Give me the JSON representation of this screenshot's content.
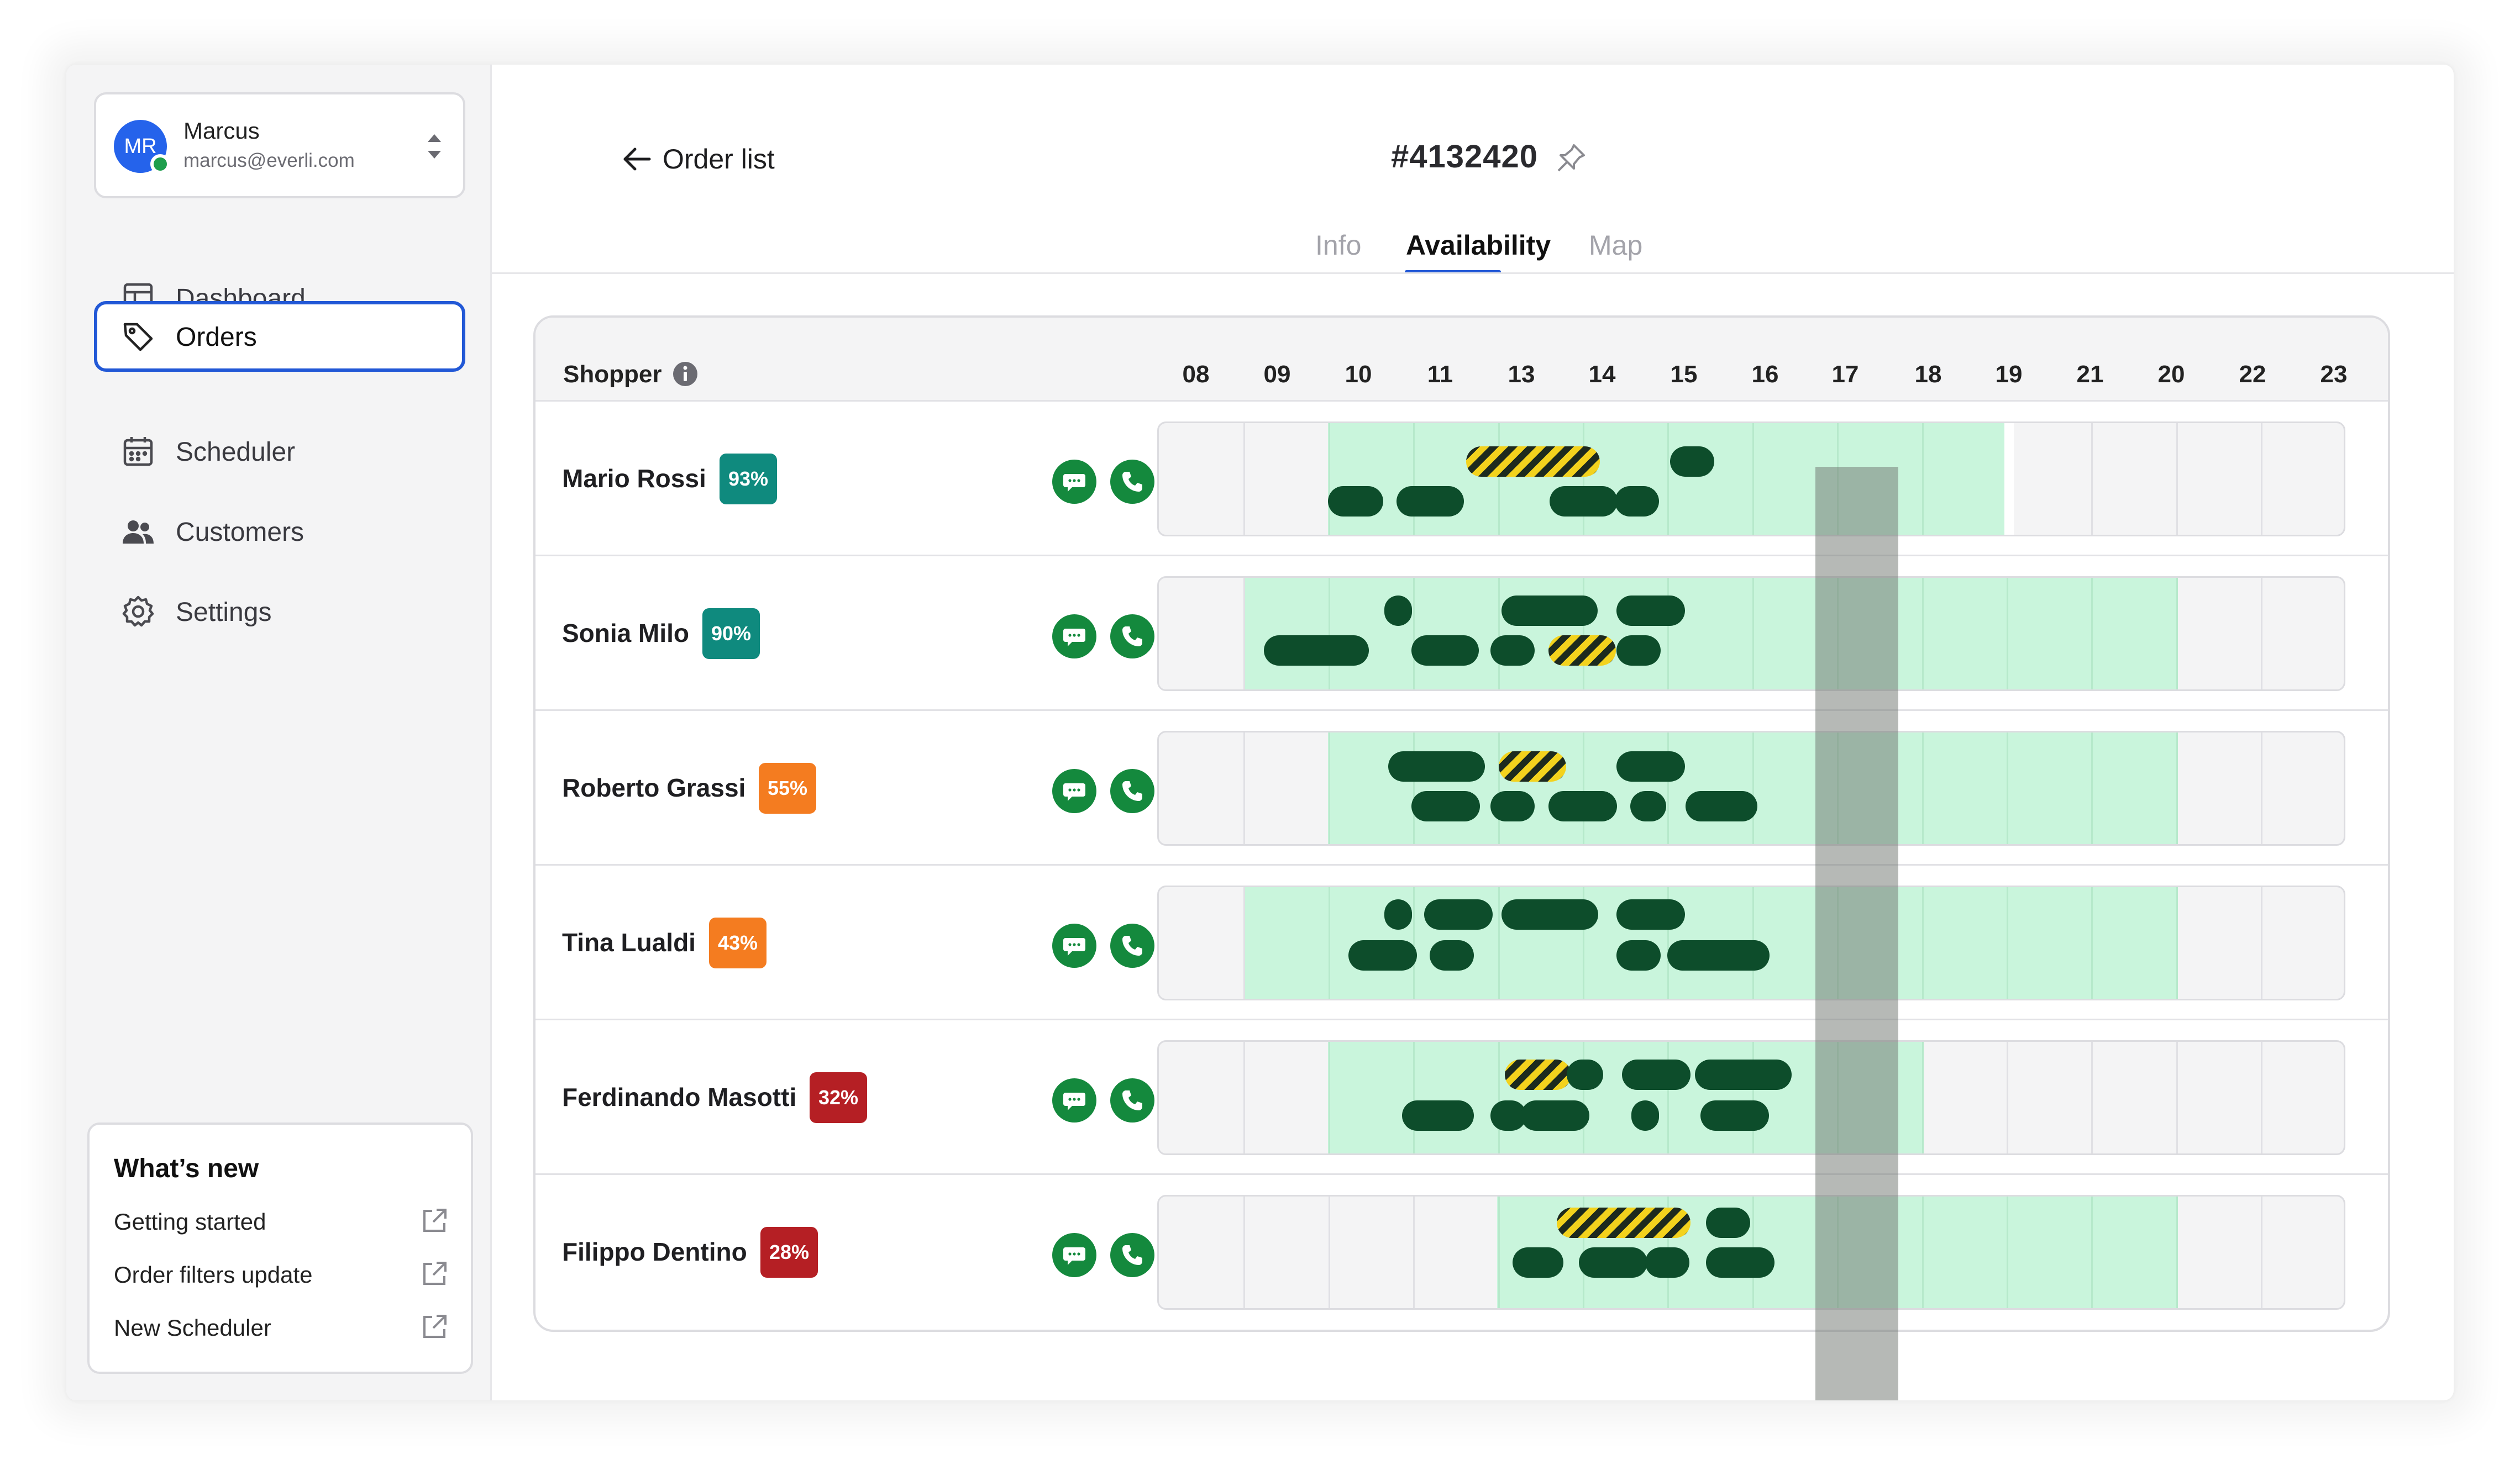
{
  "user": {
    "initials": "MR",
    "name": "Marcus",
    "email": "marcus@everli.com"
  },
  "nav": [
    {
      "label": "Dashboard",
      "icon": "layout-icon",
      "active": false
    },
    {
      "label": "Orders",
      "icon": "tag-icon",
      "active": true
    },
    {
      "label": "Scheduler",
      "icon": "calendar-icon",
      "active": false
    },
    {
      "label": "Customers",
      "icon": "users-icon",
      "active": false
    },
    {
      "label": "Settings",
      "icon": "gear-icon",
      "active": false
    }
  ],
  "whats_new": {
    "title": "What’s new",
    "links": [
      "Getting started",
      "Order filters update",
      "New Scheduler"
    ]
  },
  "header": {
    "back_label": "Order list",
    "order_id": "#4132420"
  },
  "tabs": [
    {
      "label": "Info",
      "active": false
    },
    {
      "label": "Availability",
      "active": true
    },
    {
      "label": "Map",
      "active": false
    }
  ],
  "table": {
    "shopper_heading": "Shopper",
    "hours": [
      "08",
      "09",
      "10",
      "11",
      "13",
      "14",
      "15",
      "16",
      "17",
      "18",
      "19",
      "21",
      "20",
      "22",
      "23"
    ],
    "current_hour": "17",
    "rows": [
      {
        "name": "Mario Rossi",
        "score": "93%",
        "score_color": "#0f8a7e"
      },
      {
        "name": "Sonia Milo",
        "score": "90%",
        "score_color": "#0f8a7e"
      },
      {
        "name": "Roberto Grassi",
        "score": "55%",
        "score_color": "#f47c20"
      },
      {
        "name": "Tina Lualdi",
        "score": "43%",
        "score_color": "#f47c20"
      },
      {
        "name": "Ferdinando Masotti",
        "score": "32%",
        "score_color": "#b51f24"
      },
      {
        "name": "Filippo Dentino",
        "score": "28%",
        "score_color": "#b51f24"
      }
    ]
  },
  "colors": {
    "accent": "#2258d6",
    "available": "#c9f5dc",
    "booked": "#0d4d2b",
    "conflict_stripe": "#f3d21d",
    "action_green": "#14893d"
  }
}
